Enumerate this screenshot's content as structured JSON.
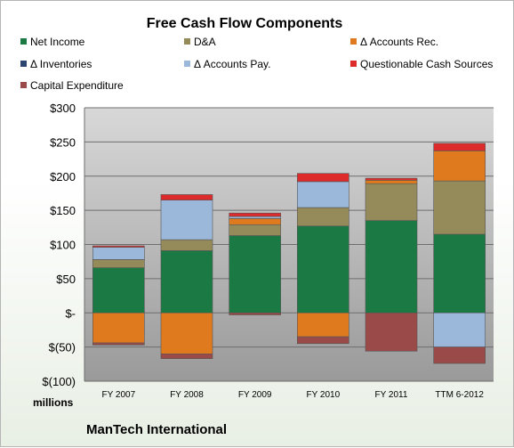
{
  "chart_data": {
    "type": "bar",
    "stacked": true,
    "title": "Free Cash Flow Components",
    "ylabel": "millions",
    "company": "ManTech International",
    "categories": [
      "FY 2007",
      "FY 2008",
      "FY 2009",
      "FY 2010",
      "FY 2011",
      "TTM 6-2012"
    ],
    "ylim": [
      -100,
      300
    ],
    "yticks": [
      -100,
      -50,
      0,
      50,
      100,
      150,
      200,
      250,
      300
    ],
    "ytick_labels": [
      "$(100)",
      "$(50)",
      "$-",
      "$50",
      "$100",
      "$150",
      "$200",
      "$250",
      "$300"
    ],
    "grid": true,
    "legend_position": "top",
    "series": [
      {
        "name": "Net Income",
        "color": "#1b7a44",
        "values": [
          66,
          91,
          113,
          127,
          135,
          115
        ]
      },
      {
        "name": "D&A",
        "color": "#958a5a",
        "values": [
          12,
          16,
          16,
          27,
          54,
          78
        ]
      },
      {
        "name": "Δ Accounts Rec.",
        "color": "#e07a1e",
        "values": [
          -44,
          -60,
          9,
          -35,
          5,
          44
        ]
      },
      {
        "name": "Δ Inventories",
        "color": "#2b4570",
        "values": [
          0,
          0,
          0,
          0,
          0,
          0
        ]
      },
      {
        "name": "Δ Accounts Pay.",
        "color": "#9bb7d9",
        "values": [
          18,
          58,
          3,
          38,
          0,
          -50
        ]
      },
      {
        "name": "Questionable Cash Sources",
        "color": "#dd2a2a",
        "values": [
          2,
          8,
          5,
          12,
          3,
          11
        ]
      },
      {
        "name": "Capital Expenditure",
        "color": "#9a4a48",
        "values": [
          -3,
          -7,
          -3,
          -10,
          -56,
          -24
        ]
      }
    ]
  }
}
